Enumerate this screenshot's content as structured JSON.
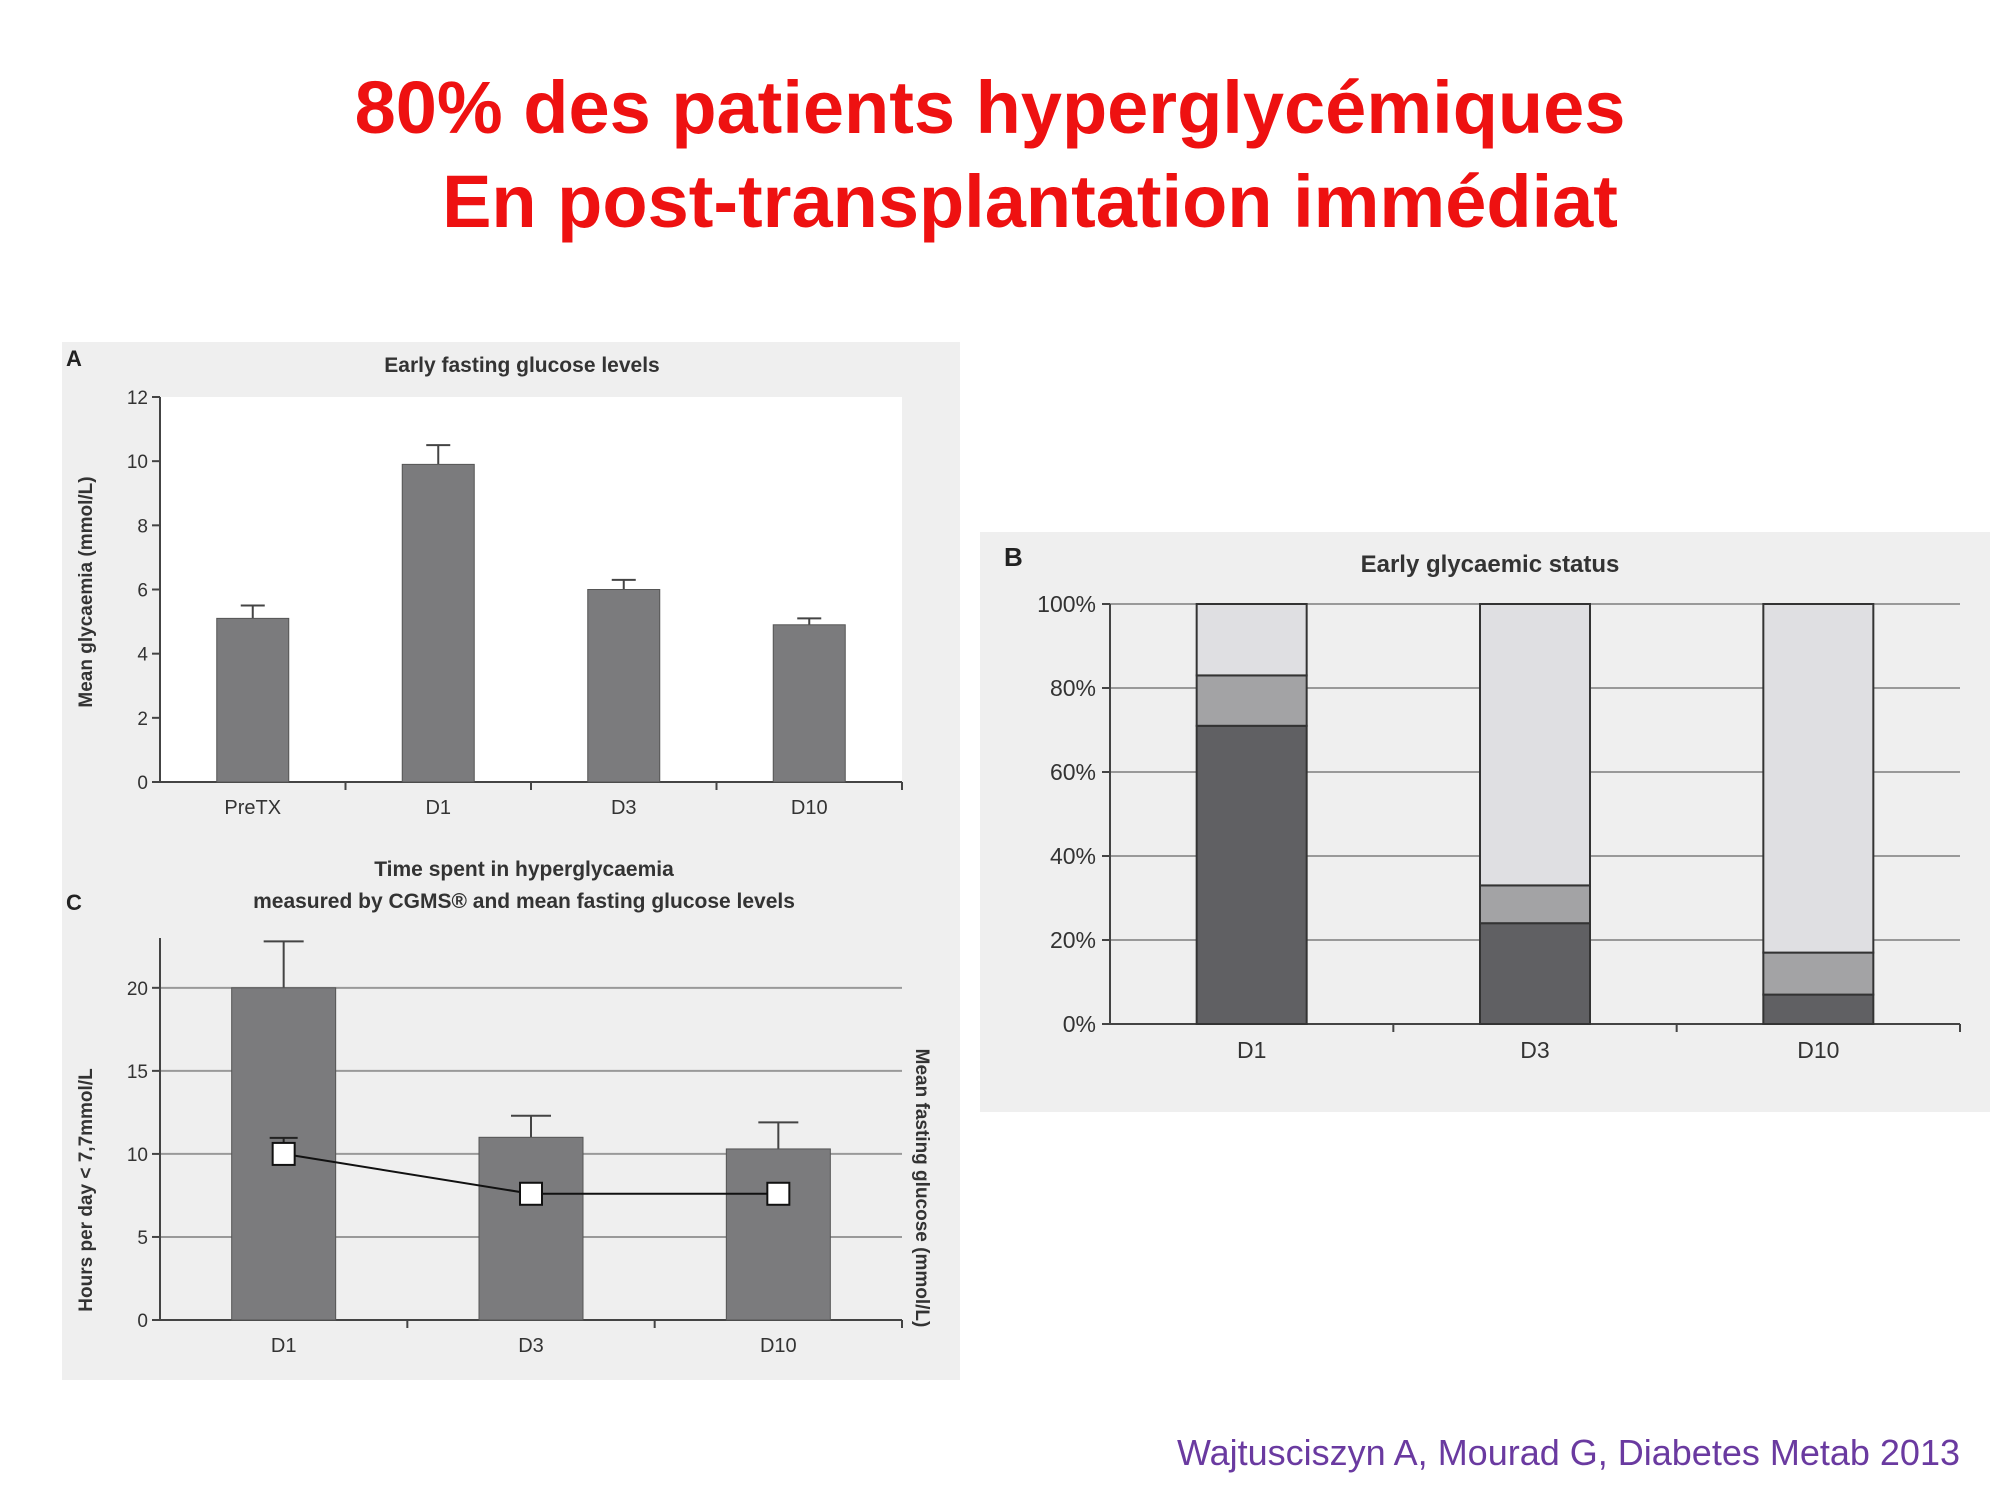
{
  "slide": {
    "title_line1": "80% des patients hyperglycémiques",
    "title_line2": "En post-transplantation immédiat",
    "citation": "Wajtusciszyn A, Mourad G, Diabetes Metab 2013",
    "colors": {
      "title": "#ee1111",
      "citation": "#6a3aa0",
      "bar": "#7b7b7d",
      "panel_bg": "#efefef"
    }
  },
  "chart_data": [
    {
      "panel": "A",
      "type": "bar",
      "title": "Early fasting glucose levels",
      "ylabel": "Mean glycaemia (mmol/L)",
      "xlabel": "",
      "ylim": [
        0,
        12
      ],
      "yticks": [
        "0",
        "2",
        "4",
        "6",
        "8",
        "10",
        "12"
      ],
      "categories": [
        "PreTX",
        "D1",
        "D3",
        "D10"
      ],
      "values": [
        5.1,
        9.9,
        6.0,
        4.9
      ],
      "errors": [
        0.4,
        0.6,
        0.3,
        0.2
      ],
      "grid": false
    },
    {
      "panel": "B",
      "type": "bar",
      "stacked": true,
      "title": "Early glycaemic status",
      "ylabel": "",
      "xlabel": "",
      "ylim": [
        0,
        100
      ],
      "yticks": [
        "0%",
        "20%",
        "40%",
        "60%",
        "80%",
        "100%"
      ],
      "categories": [
        "D1",
        "D3",
        "D10"
      ],
      "series": [
        {
          "values": [
            71,
            24,
            7
          ],
          "color": "#606063"
        },
        {
          "values": [
            12,
            9,
            10
          ],
          "color": "#a3a3a5"
        },
        {
          "values": [
            17,
            67,
            83
          ],
          "color": "#dfdfe2"
        }
      ],
      "grid": true
    },
    {
      "panel": "C",
      "type": "bar",
      "title": "Time spent in hyperglycaemia",
      "subtitle": "measured by CGMS® and mean fasting glucose levels",
      "ylabel": "Hours per day < 7,7mmol/L",
      "y2label": "Mean fasting glucose (mmol/L)",
      "xlabel": "",
      "ylim": [
        0,
        23
      ],
      "yticks": [
        "0",
        "5",
        "10",
        "15",
        "20"
      ],
      "categories": [
        "D1",
        "D3",
        "D10"
      ],
      "values": [
        20.0,
        11.0,
        10.3
      ],
      "errors": [
        2.8,
        1.3,
        1.6
      ],
      "line_values": [
        10.0,
        7.6,
        7.6
      ],
      "grid": true
    }
  ]
}
